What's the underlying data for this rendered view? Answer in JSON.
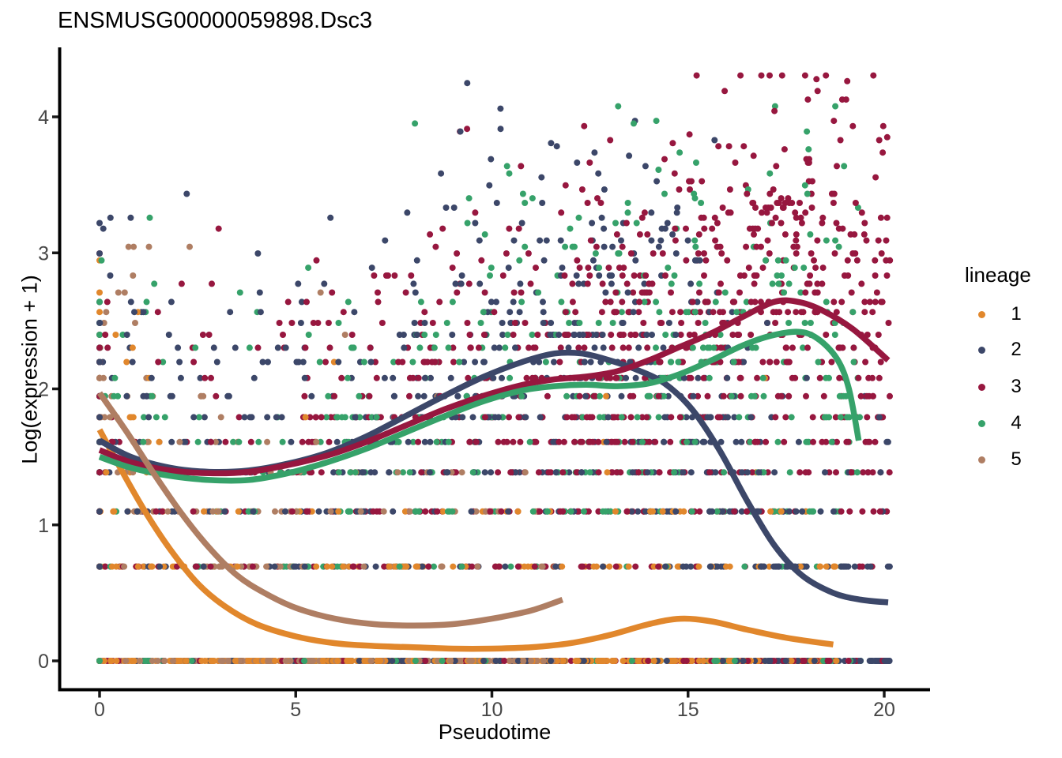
{
  "title": "ENSMUSG00000059898.Dsc3",
  "axes": {
    "x": {
      "label": "Pseudotime",
      "ticks": [
        "0",
        "5",
        "10",
        "15",
        "20"
      ],
      "tick_values": [
        0,
        5,
        10,
        15,
        20
      ]
    },
    "y": {
      "label": "Log(expression + 1)",
      "ticks": [
        "0",
        "1",
        "2",
        "3",
        "4"
      ],
      "tick_values": [
        0,
        1,
        2,
        3,
        4
      ]
    }
  },
  "legend": {
    "title": "lineage",
    "position": "right",
    "items": [
      {
        "label": "1",
        "color": "#E1872C"
      },
      {
        "label": "2",
        "color": "#3C4769"
      },
      {
        "label": "3",
        "color": "#97173F"
      },
      {
        "label": "4",
        "color": "#36A26A"
      },
      {
        "label": "5",
        "color": "#AF7E63"
      }
    ]
  },
  "chart_data": {
    "type": "scatter",
    "title": "ENSMUSG00000059898.Dsc3",
    "xlabel": "Pseudotime",
    "ylabel": "Log(expression + 1)",
    "xlim": [
      -1.0,
      21.2
    ],
    "ylim": [
      -0.2,
      4.65
    ],
    "grid": false,
    "legend_position": "right",
    "point_rule": "each point y = ln(count+1), discrete horizontal rows",
    "colors": {
      "1": "#E1872C",
      "2": "#3C4769",
      "3": "#97173F",
      "4": "#36A26A",
      "5": "#AF7E63"
    },
    "smoothers": [
      {
        "lineage": "1",
        "color": "#E1872C",
        "points": [
          [
            0,
            1.7
          ],
          [
            0.6,
            1.38
          ],
          [
            1.2,
            1.08
          ],
          [
            1.8,
            0.82
          ],
          [
            2.5,
            0.57
          ],
          [
            3.2,
            0.4
          ],
          [
            4,
            0.27
          ],
          [
            5,
            0.18
          ],
          [
            6,
            0.13
          ],
          [
            7,
            0.11
          ],
          [
            8,
            0.1
          ],
          [
            9,
            0.09
          ],
          [
            10,
            0.09
          ],
          [
            11,
            0.1
          ],
          [
            12,
            0.13
          ],
          [
            13,
            0.19
          ],
          [
            14,
            0.27
          ],
          [
            14.8,
            0.31
          ],
          [
            15.6,
            0.29
          ],
          [
            16.5,
            0.23
          ],
          [
            17.5,
            0.17
          ],
          [
            18.7,
            0.12
          ]
        ]
      },
      {
        "lineage": "2",
        "color": "#3C4769",
        "points": [
          [
            0,
            1.62
          ],
          [
            0.8,
            1.5
          ],
          [
            1.8,
            1.42
          ],
          [
            2.8,
            1.39
          ],
          [
            3.8,
            1.4
          ],
          [
            4.8,
            1.45
          ],
          [
            5.8,
            1.53
          ],
          [
            6.8,
            1.65
          ],
          [
            7.8,
            1.8
          ],
          [
            8.8,
            1.95
          ],
          [
            9.8,
            2.09
          ],
          [
            10.8,
            2.2
          ],
          [
            11.6,
            2.26
          ],
          [
            12.3,
            2.26
          ],
          [
            13,
            2.21
          ],
          [
            13.7,
            2.14
          ],
          [
            14.4,
            2.04
          ],
          [
            15.1,
            1.85
          ],
          [
            15.8,
            1.55
          ],
          [
            16.5,
            1.18
          ],
          [
            17.2,
            0.85
          ],
          [
            17.9,
            0.63
          ],
          [
            18.7,
            0.5
          ],
          [
            19.4,
            0.45
          ],
          [
            20.1,
            0.43
          ]
        ]
      },
      {
        "lineage": "3",
        "color": "#97173F",
        "points": [
          [
            0,
            1.55
          ],
          [
            0.8,
            1.46
          ],
          [
            1.8,
            1.4
          ],
          [
            2.8,
            1.38
          ],
          [
            3.8,
            1.39
          ],
          [
            4.8,
            1.44
          ],
          [
            5.8,
            1.51
          ],
          [
            6.8,
            1.61
          ],
          [
            7.8,
            1.73
          ],
          [
            8.8,
            1.85
          ],
          [
            9.8,
            1.95
          ],
          [
            10.8,
            2.03
          ],
          [
            11.6,
            2.07
          ],
          [
            12.4,
            2.09
          ],
          [
            13.2,
            2.13
          ],
          [
            14,
            2.21
          ],
          [
            14.8,
            2.31
          ],
          [
            15.6,
            2.41
          ],
          [
            16.4,
            2.53
          ],
          [
            17.2,
            2.64
          ],
          [
            17.8,
            2.64
          ],
          [
            18.4,
            2.58
          ],
          [
            19.2,
            2.44
          ],
          [
            20.1,
            2.21
          ]
        ]
      },
      {
        "lineage": "4",
        "color": "#36A26A",
        "points": [
          [
            0,
            1.5
          ],
          [
            0.8,
            1.42
          ],
          [
            1.8,
            1.36
          ],
          [
            2.8,
            1.33
          ],
          [
            3.8,
            1.33
          ],
          [
            4.8,
            1.38
          ],
          [
            5.8,
            1.46
          ],
          [
            6.8,
            1.56
          ],
          [
            7.8,
            1.68
          ],
          [
            8.8,
            1.8
          ],
          [
            9.8,
            1.91
          ],
          [
            10.8,
            1.99
          ],
          [
            11.6,
            2.02
          ],
          [
            12.4,
            2.03
          ],
          [
            13.2,
            2.02
          ],
          [
            14,
            2.04
          ],
          [
            14.8,
            2.11
          ],
          [
            15.6,
            2.21
          ],
          [
            16.4,
            2.32
          ],
          [
            17.1,
            2.39
          ],
          [
            17.8,
            2.42
          ],
          [
            18.3,
            2.37
          ],
          [
            18.8,
            2.22
          ],
          [
            19.1,
            2.0
          ],
          [
            19.35,
            1.62
          ]
        ]
      },
      {
        "lineage": "5",
        "color": "#AF7E63",
        "points": [
          [
            0,
            1.97
          ],
          [
            0.7,
            1.68
          ],
          [
            1.4,
            1.37
          ],
          [
            2.1,
            1.08
          ],
          [
            2.8,
            0.83
          ],
          [
            3.5,
            0.63
          ],
          [
            4.2,
            0.5
          ],
          [
            5,
            0.39
          ],
          [
            6,
            0.31
          ],
          [
            7,
            0.27
          ],
          [
            8,
            0.26
          ],
          [
            9,
            0.27
          ],
          [
            10,
            0.31
          ],
          [
            11,
            0.37
          ],
          [
            11.8,
            0.45
          ]
        ]
      }
    ],
    "scatter_generation": {
      "seed": 42,
      "note": "points sampled per lineage around its smoother in log space; y snapped to ln(k+1)",
      "lineages": [
        {
          "lineage": "1",
          "color": "#E1872C",
          "n": 540,
          "sigma": 0.7,
          "extra_zero": 0.3,
          "p_x0": 0.04,
          "max_count": 73,
          "x_segments": [
            [
              0,
              1,
              0.9
            ],
            [
              1,
              5,
              2.2
            ],
            [
              5,
              9,
              2.8
            ],
            [
              9,
              13,
              2.6
            ],
            [
              13,
              16,
              2.2
            ],
            [
              16,
              18.8,
              1.6
            ]
          ]
        },
        {
          "lineage": "2",
          "color": "#3C4769",
          "n": 820,
          "sigma": 0.8,
          "extra_zero": 0.16,
          "p_x0": 0.04,
          "max_count": 73,
          "x_segments": [
            [
              0,
              2,
              0.9
            ],
            [
              2,
              5,
              1.2
            ],
            [
              5,
              8,
              1.8
            ],
            [
              8,
              12,
              3.2
            ],
            [
              12,
              16,
              3.4
            ],
            [
              16,
              20.15,
              2.8
            ]
          ]
        },
        {
          "lineage": "3",
          "color": "#97173F",
          "n": 1060,
          "sigma": 0.8,
          "extra_zero": 0.08,
          "p_x0": 0.04,
          "max_count": 73,
          "x_segments": [
            [
              0,
              2,
              0.7
            ],
            [
              2,
              5,
              1.0
            ],
            [
              5,
              8,
              1.6
            ],
            [
              8,
              12,
              3.0
            ],
            [
              12,
              16,
              5.5
            ],
            [
              16,
              20.15,
              6.5
            ]
          ]
        },
        {
          "lineage": "4",
          "color": "#36A26A",
          "n": 540,
          "sigma": 0.8,
          "extra_zero": 0.12,
          "p_x0": 0.04,
          "max_count": 58,
          "x_segments": [
            [
              0,
              2,
              0.4
            ],
            [
              2,
              5,
              0.6
            ],
            [
              5,
              8,
              1.0
            ],
            [
              8,
              12,
              1.8
            ],
            [
              12,
              16,
              2.6
            ],
            [
              16,
              19.5,
              2.2
            ]
          ]
        },
        {
          "lineage": "5",
          "color": "#AF7E63",
          "n": 310,
          "sigma": 0.75,
          "extra_zero": 0.28,
          "p_x0": 0.04,
          "max_count": 20,
          "x_segments": [
            [
              0,
              1,
              0.5
            ],
            [
              1,
              4,
              1.3
            ],
            [
              4,
              8,
              1.8
            ],
            [
              8,
              11.8,
              1.2
            ]
          ]
        }
      ]
    }
  }
}
